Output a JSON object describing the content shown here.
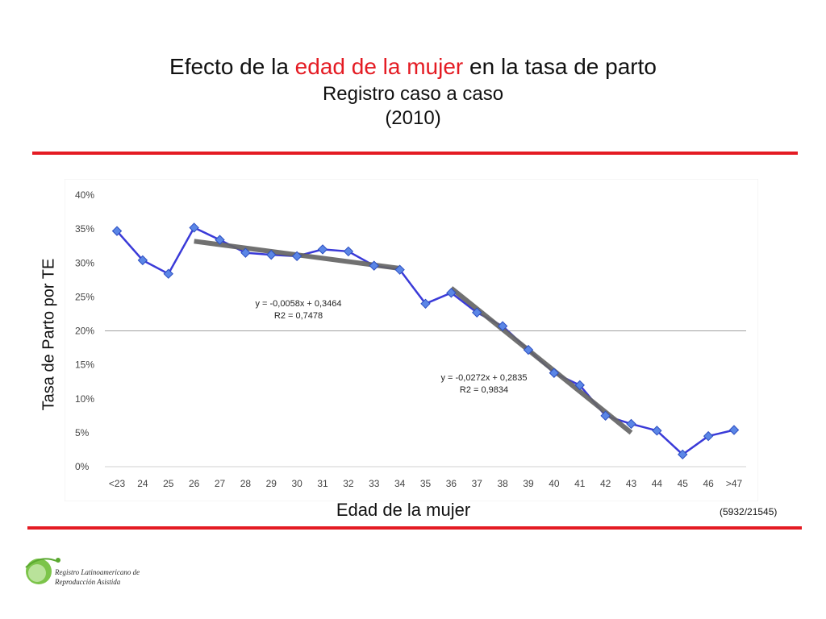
{
  "header": {
    "title_pre": "Efecto de la ",
    "title_accent": "edad de la mujer",
    "title_post": " en la tasa de parto",
    "subtitle": "Registro caso a caso",
    "year": "(2010)"
  },
  "colors": {
    "accent_red": "#e41b23",
    "series_blue": "#3a3ad8",
    "marker_blue": "#5b86e6",
    "trend_gray": "#666666"
  },
  "footer": {
    "sample_note": "(5932/21545)",
    "logo_line1": "Registro Latinoamericano de",
    "logo_line2": "Reproducción Asistida"
  },
  "chart_data": {
    "type": "line",
    "title": "Efecto de la edad de la mujer en la tasa de parto",
    "xlabel": "Edad de la mujer",
    "ylabel": "Tasa de Parto por TE",
    "categories": [
      "<23",
      "24",
      "25",
      "26",
      "27",
      "28",
      "29",
      "30",
      "31",
      "32",
      "33",
      "34",
      "35",
      "36",
      "37",
      "38",
      "39",
      "40",
      "41",
      "42",
      "43",
      "44",
      "45",
      "46",
      ">47"
    ],
    "series": [
      {
        "name": "Tasa de parto",
        "values": [
          34.7,
          30.4,
          28.4,
          35.2,
          33.4,
          31.5,
          31.2,
          31.0,
          32.0,
          31.7,
          29.6,
          29.0,
          24.0,
          25.6,
          22.7,
          20.7,
          17.2,
          13.8,
          12.0,
          7.5,
          6.3,
          5.3,
          1.8,
          4.5,
          5.4
        ]
      }
    ],
    "trendlines": [
      {
        "equation": "y = -0,0058x + 0,3464",
        "r2": "R2 = 0,7478",
        "from_category": "26",
        "to_category": "34",
        "start_value": 33.2,
        "end_value": 29.2
      },
      {
        "equation": "y = -0,0272x + 0,2835",
        "r2": "R2 = 0,9834",
        "from_category": "36",
        "to_category": "43",
        "start_value": 26.3,
        "end_value": 5.0
      }
    ],
    "ylim": [
      0,
      40
    ],
    "yticks": [
      0,
      5,
      10,
      15,
      20,
      25,
      30,
      35,
      40
    ],
    "ytick_labels": [
      "0%",
      "5%",
      "10%",
      "15%",
      "20%",
      "25%",
      "30%",
      "35%",
      "40%"
    ],
    "gridlines": [
      20
    ],
    "legend": "none"
  }
}
